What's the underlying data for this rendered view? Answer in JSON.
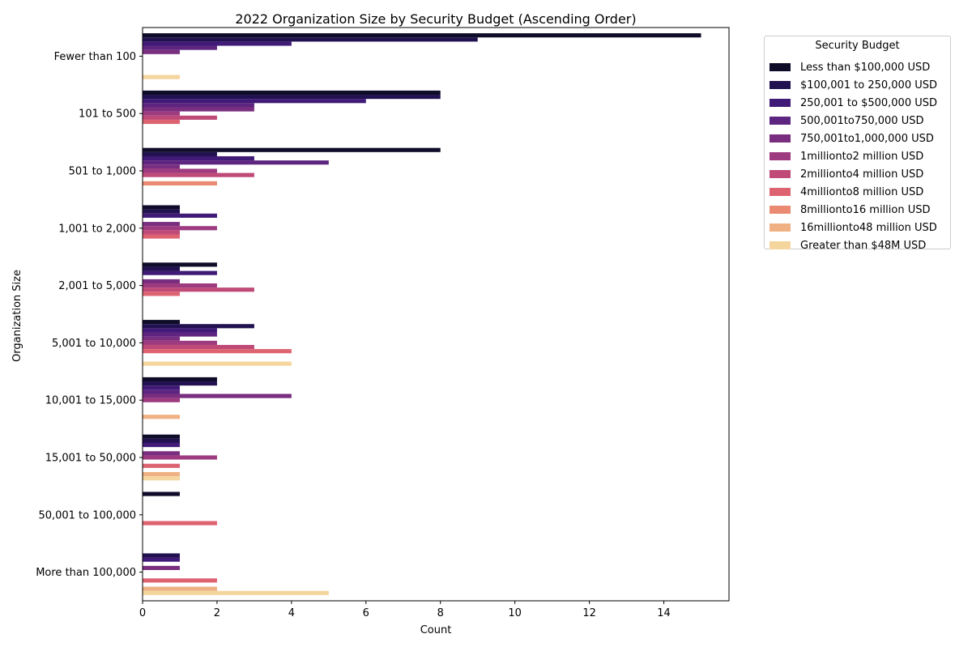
{
  "chart_data": {
    "type": "bar",
    "orientation": "horizontal",
    "title": "2022 Organization Size by Security Budget (Ascending Order)",
    "xlabel": "Count",
    "ylabel": "Organization Size",
    "xlim": [
      0,
      15.75
    ],
    "xticks": [
      0,
      2,
      4,
      6,
      8,
      10,
      12,
      14
    ],
    "grid": false,
    "legend": {
      "title": "Security Budget",
      "placement": "upper-right-outside"
    },
    "categories": [
      "Fewer than 100",
      "101 to 500",
      "501 to 1,000",
      "1,001 to 2,000",
      "2,001 to 5,000",
      "5,001 to 10,000",
      "10,001 to 15,000",
      "15,001 to 50,000",
      "50,001 to 100,000",
      "More than 100,000"
    ],
    "series": [
      {
        "name": "Less than $100,000 USD",
        "color": "#0f0c29",
        "values": [
          15,
          8,
          8,
          1,
          2,
          1,
          2,
          1,
          1,
          0
        ]
      },
      {
        "name": "$100,001 to 250,000 USD",
        "color": "#221150",
        "values": [
          9,
          8,
          2,
          1,
          1,
          3,
          2,
          1,
          0,
          1
        ]
      },
      {
        "name": "250,001 to $500,000 USD",
        "color": "#3f1a76",
        "values": [
          4,
          6,
          3,
          2,
          2,
          2,
          1,
          1,
          0,
          1
        ]
      },
      {
        "name": "500,001to750,000 USD",
        "color": "#5d2580",
        "values": [
          2,
          3,
          5,
          0,
          0,
          2,
          1,
          0,
          0,
          0
        ]
      },
      {
        "name": "750,001to1,000,000 USD",
        "color": "#7a2e7f",
        "values": [
          1,
          3,
          1,
          1,
          1,
          1,
          4,
          1,
          0,
          1
        ]
      },
      {
        "name": "1millionto2 million USD",
        "color": "#9d3a80",
        "values": [
          0,
          1,
          2,
          2,
          2,
          2,
          1,
          2,
          0,
          0
        ]
      },
      {
        "name": "2millionto4 million USD",
        "color": "#bf4a78",
        "values": [
          0,
          2,
          3,
          1,
          3,
          3,
          0,
          0,
          0,
          0
        ]
      },
      {
        "name": "4millionto8 million USD",
        "color": "#de6370",
        "values": [
          0,
          1,
          0,
          1,
          1,
          4,
          0,
          1,
          2,
          2
        ]
      },
      {
        "name": "8millionto16 million USD",
        "color": "#ea8a72",
        "values": [
          0,
          0,
          2,
          0,
          0,
          0,
          0,
          0,
          0,
          0
        ]
      },
      {
        "name": "16millionto48 million USD",
        "color": "#efb183",
        "values": [
          0,
          0,
          0,
          0,
          0,
          0,
          1,
          1,
          0,
          2
        ]
      },
      {
        "name": "Greater than $48M USD",
        "color": "#f5d59e",
        "values": [
          1,
          0,
          0,
          0,
          0,
          4,
          0,
          1,
          0,
          5
        ]
      }
    ]
  }
}
